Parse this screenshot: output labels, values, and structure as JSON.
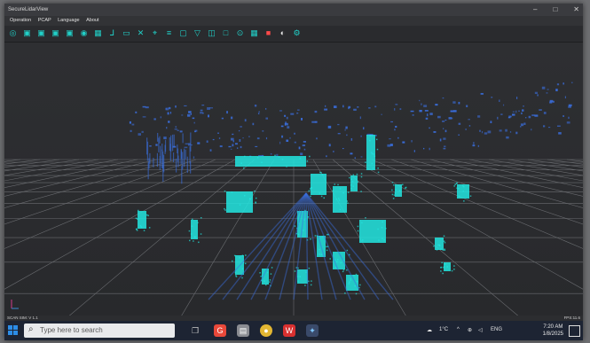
{
  "window": {
    "title": "SecureLidarView",
    "controls": [
      "–",
      "□",
      "✕"
    ]
  },
  "menu": [
    "Operation",
    "PCAP",
    "Language",
    "About"
  ],
  "toolbar": {
    "icons": [
      "open-icon",
      "cube-icon",
      "cube-front-icon",
      "cube-side-icon",
      "cube-top-icon",
      "target-icon",
      "grid-icon",
      "axis-icon",
      "box-icon",
      "cross-icon",
      "crosshair-icon",
      "list-icon",
      "monitor-icon",
      "filter-icon",
      "select-icon",
      "square-icon",
      "point-icon",
      "grid-small-icon",
      "record-icon",
      "circle-icon",
      "settings-icon"
    ],
    "accent": "#21d0c8"
  },
  "viewport": {
    "background": "#2b2c2f",
    "grid_color": "#6a6c70",
    "point_color_near": "#22e6e0",
    "point_color_far": "#3a6fe0"
  },
  "status": {
    "left": "SCAN SIM: V 1.1",
    "right": "FPS:11.6"
  },
  "taskbar": {
    "search_placeholder": "Type here to search",
    "apps": [
      "task-view-icon",
      "g-app-icon",
      "files-icon",
      "chrome-icon",
      "wps-icon",
      "lidar-app-icon"
    ],
    "tray": {
      "weather": "1°C",
      "language": "ENG",
      "time": "7:20 AM",
      "date": "1/8/2025"
    }
  }
}
